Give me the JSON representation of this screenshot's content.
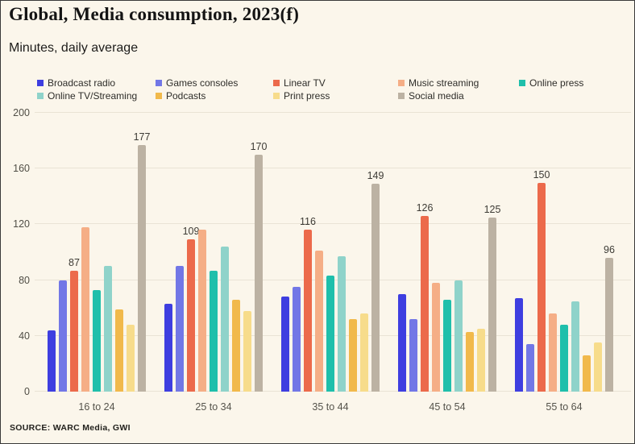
{
  "header": {
    "title": "Global, Media consumption, 2023(f)",
    "subtitle": "Minutes, daily average"
  },
  "footer": {
    "source": "SOURCE: WARC Media, GWI"
  },
  "colors": {
    "background": "#FBF6EB",
    "border": "#3a3a3a",
    "gridline": "#E9E3D5"
  },
  "chart_data": {
    "type": "bar",
    "title": "Global, Media consumption, 2023(f)",
    "subtitle": "Minutes, daily average",
    "categories": [
      "16 to 24",
      "25 to 34",
      "35 to 44",
      "45 to 54",
      "55 to 64"
    ],
    "series": [
      {
        "name": "Broadcast radio",
        "color": "#3E3EE0",
        "values": [
          44,
          63,
          68,
          70,
          67
        ],
        "show_value_labels": false
      },
      {
        "name": "Games consoles",
        "color": "#7277E6",
        "values": [
          80,
          90,
          75,
          52,
          34
        ],
        "show_value_labels": false
      },
      {
        "name": "Linear TV",
        "color": "#EC6A4B",
        "values": [
          87,
          109,
          116,
          126,
          150
        ],
        "show_value_labels": true
      },
      {
        "name": "Music streaming",
        "color": "#F5AE86",
        "values": [
          118,
          116,
          101,
          78,
          56
        ],
        "show_value_labels": false
      },
      {
        "name": "Online press",
        "color": "#1FBFAB",
        "values": [
          73,
          87,
          83,
          66,
          48
        ],
        "show_value_labels": false
      },
      {
        "name": "Online TV/Streaming",
        "color": "#8FD3CA",
        "values": [
          90,
          104,
          97,
          80,
          65
        ],
        "show_value_labels": false
      },
      {
        "name": "Podcasts",
        "color": "#F1B94B",
        "values": [
          59,
          66,
          52,
          43,
          26
        ],
        "show_value_labels": false
      },
      {
        "name": "Print press",
        "color": "#F7DC8B",
        "values": [
          48,
          58,
          56,
          45,
          35
        ],
        "show_value_labels": false
      },
      {
        "name": "Social media",
        "color": "#BCB2A3",
        "values": [
          177,
          170,
          149,
          125,
          96
        ],
        "show_value_labels": true
      }
    ],
    "xlabel": "",
    "ylabel": "",
    "ylim": [
      0,
      200
    ],
    "yticks": [
      0,
      40,
      80,
      120,
      160,
      200
    ],
    "grid": true,
    "legend_position": "top"
  }
}
